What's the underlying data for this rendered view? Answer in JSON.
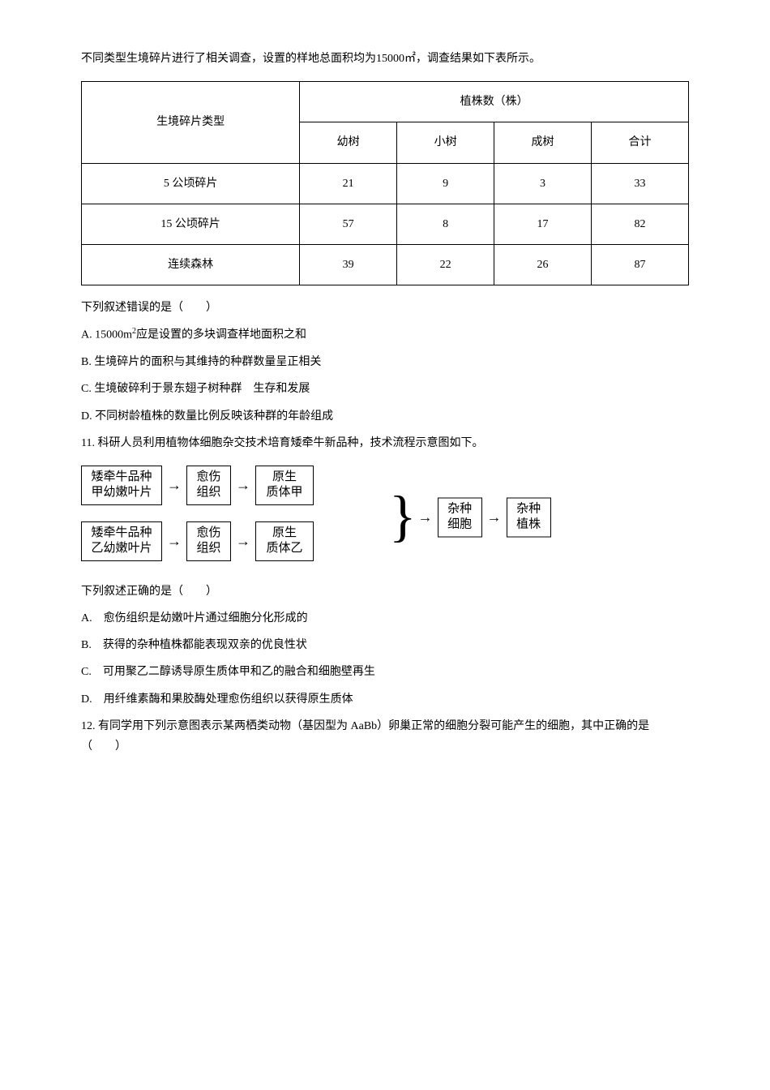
{
  "intro": "不同类型生境碎片进行了相关调查，设置的样地总面积均为15000㎡，调查结果如下表所示。",
  "table": {
    "header_rowlabel": "生境碎片类型",
    "header_main": "植株数（株）",
    "subheaders": [
      "幼树",
      "小树",
      "成树",
      "合计"
    ],
    "rows": [
      {
        "label": "5 公顷碎片",
        "values": [
          "21",
          "9",
          "3",
          "33"
        ]
      },
      {
        "label": "15 公顷碎片",
        "values": [
          "57",
          "8",
          "17",
          "82"
        ]
      },
      {
        "label": "连续森林",
        "values": [
          "39",
          "22",
          "26",
          "87"
        ]
      }
    ]
  },
  "q10": {
    "stem": "下列叙述错误的是（　　）",
    "optA_pre": "A. 15000m",
    "optA_sup": "2",
    "optA_post": "应是设置的多块调查样地面积之和",
    "optB": "B. 生境碎片的面积与其维持的种群数量呈正相关",
    "optC": "C. 生境破碎利于景东翅子树种群　生存和发展",
    "optD": "D. 不同树龄植株的数量比例反映该种群的年龄组成"
  },
  "q11": {
    "stem": "11. 科研人员利用植物体细胞杂交技术培育矮牵牛新品种，技术流程示意图如下。",
    "diagram": {
      "box1a": "矮牵牛品种",
      "box1b": "甲幼嫩叶片",
      "box2a": "愈伤",
      "box2b": "组织",
      "box3a": "原生",
      "box3b_top": "质体甲",
      "box3b_bot": "质体乙",
      "box4a": "矮牵牛品种",
      "box4b": "乙幼嫩叶片",
      "box5a": "杂种",
      "box5b": "细胞",
      "box6a": "杂种",
      "box6b": "植株"
    },
    "question": "下列叙述正确的是（　　）",
    "optA": "A.　愈伤组织是幼嫩叶片通过细胞分化形成的",
    "optB": "B.　获得的杂种植株都能表现双亲的优良性状",
    "optC": "C.　可用聚乙二醇诱导原生质体甲和乙的融合和细胞壁再生",
    "optD": "D.　用纤维素酶和果胶酶处理愈伤组织以获得原生质体"
  },
  "q12": {
    "stem": "12. 有同学用下列示意图表示某两栖类动物（基因型为 AaBb）卵巢正常的细胞分裂可能产生的细胞，其中正确的是（　　）"
  }
}
